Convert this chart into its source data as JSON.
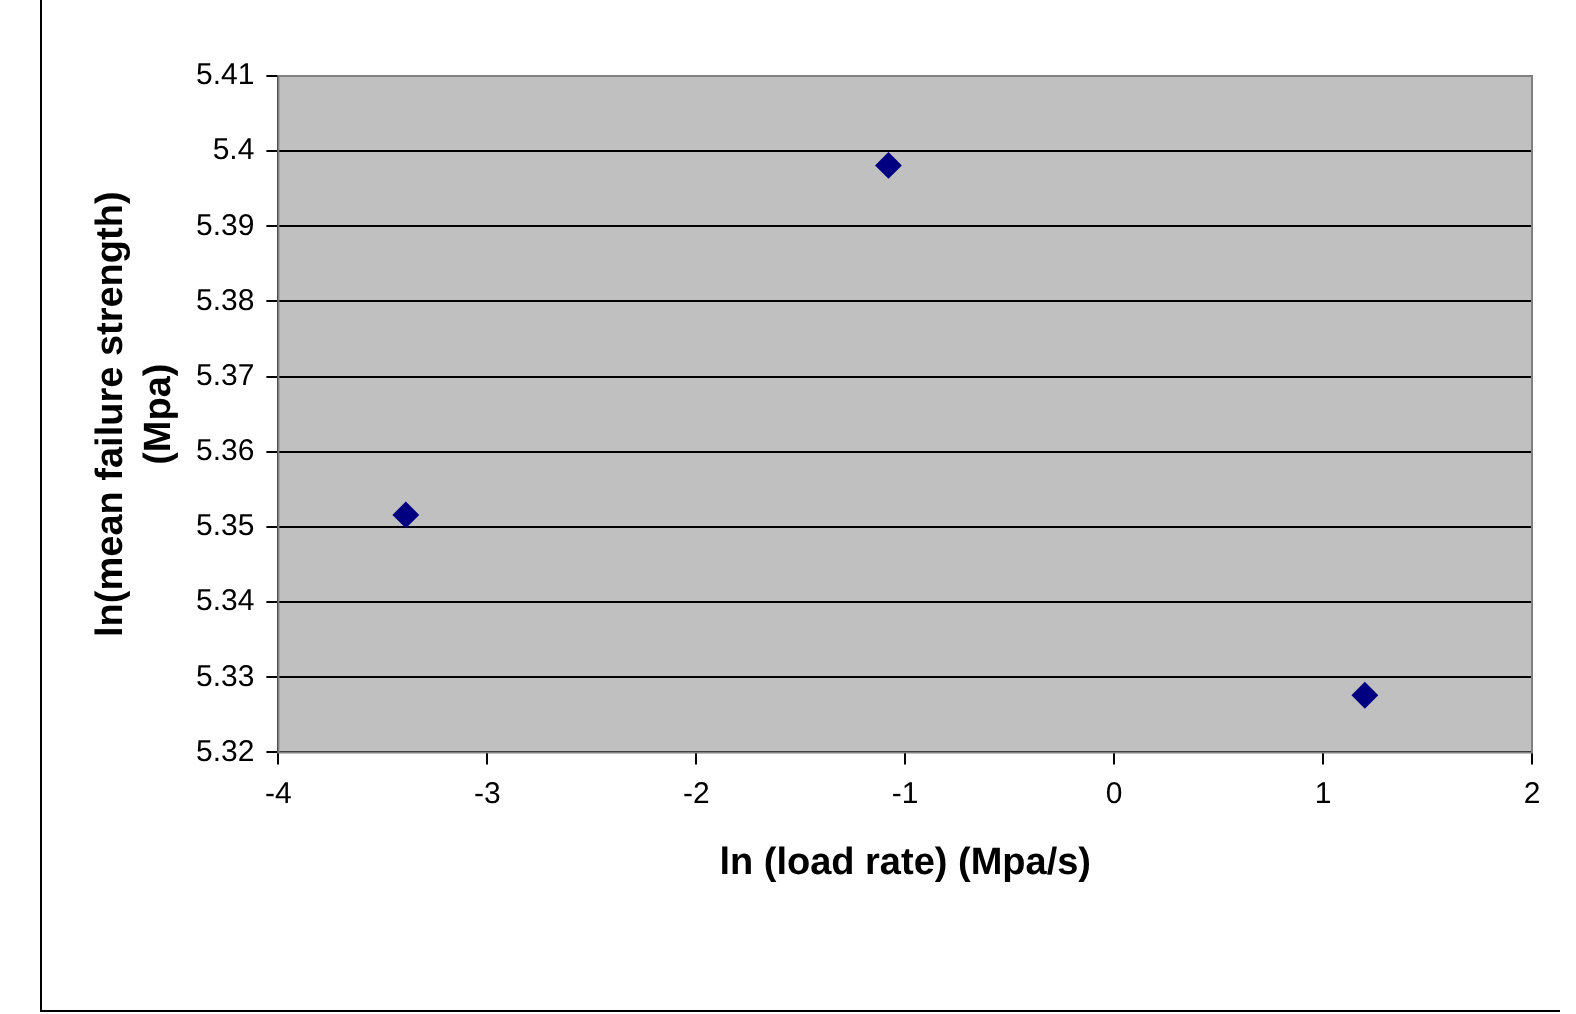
{
  "chart_data": {
    "type": "scatter",
    "xlabel": "ln (load rate) (Mpa/s)",
    "ylabel": "ln(mean failure strength) (Mpa)",
    "series": [
      {
        "color": "#000080",
        "x": [
          -3.39,
          -1.08,
          1.2
        ],
        "values": [
          5.3516,
          5.3981,
          5.3276
        ]
      }
    ],
    "xlim": [
      -4,
      2
    ],
    "xticks": [
      -4,
      -3,
      -2,
      -1,
      0,
      1,
      2
    ],
    "ylim": [
      5.32,
      5.41
    ],
    "yticks": [
      5.32,
      5.33,
      5.34,
      5.35,
      5.36,
      5.37,
      5.38,
      5.39,
      5.4,
      5.41
    ],
    "grid": "y",
    "legend": false,
    "marker": "diamond"
  }
}
